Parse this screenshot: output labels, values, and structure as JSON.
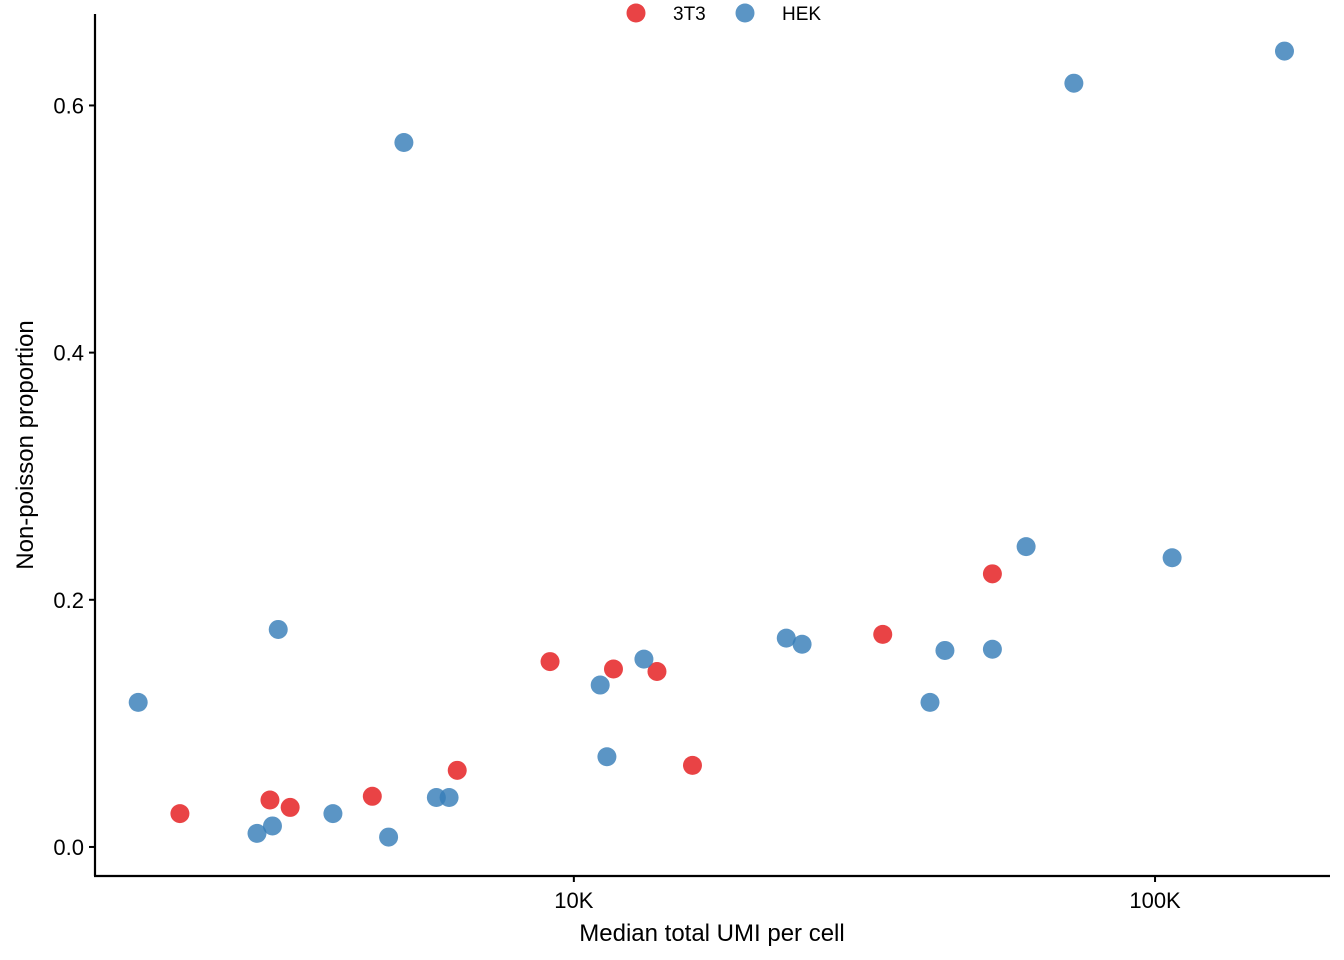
{
  "chart_data": {
    "type": "scatter",
    "title": "",
    "xlabel": "Median total UMI per cell",
    "ylabel": "Non-poisson proportion",
    "x_scale": "log10",
    "xlim": [
      1500,
      200000
    ],
    "ylim": [
      -0.0235,
      0.674
    ],
    "x_ticks": [
      {
        "value": 10000,
        "label": "10K"
      },
      {
        "value": 100000,
        "label": "100K"
      }
    ],
    "y_ticks": [
      {
        "value": 0.0,
        "label": "0.0"
      },
      {
        "value": 0.2,
        "label": "0.2"
      },
      {
        "value": 0.4,
        "label": "0.4"
      },
      {
        "value": 0.6,
        "label": "0.6"
      }
    ],
    "grid": false,
    "legend_position": "top",
    "series": [
      {
        "name": "3T3",
        "color": "#E41A1C",
        "points": [
          {
            "x": 2100,
            "y": 0.027
          },
          {
            "x": 3000,
            "y": 0.038
          },
          {
            "x": 3250,
            "y": 0.032
          },
          {
            "x": 4500,
            "y": 0.041
          },
          {
            "x": 6300,
            "y": 0.062
          },
          {
            "x": 9100,
            "y": 0.15
          },
          {
            "x": 11700,
            "y": 0.144
          },
          {
            "x": 13900,
            "y": 0.142
          },
          {
            "x": 16000,
            "y": 0.066
          },
          {
            "x": 34000,
            "y": 0.172
          },
          {
            "x": 52500,
            "y": 0.221
          }
        ]
      },
      {
        "name": "HEK",
        "color": "#377EB8",
        "points": [
          {
            "x": 1780,
            "y": 0.117
          },
          {
            "x": 2850,
            "y": 0.011
          },
          {
            "x": 3030,
            "y": 0.017
          },
          {
            "x": 3100,
            "y": 0.176
          },
          {
            "x": 3850,
            "y": 0.027
          },
          {
            "x": 4800,
            "y": 0.008
          },
          {
            "x": 5100,
            "y": 0.57
          },
          {
            "x": 5800,
            "y": 0.04
          },
          {
            "x": 6100,
            "y": 0.04
          },
          {
            "x": 11100,
            "y": 0.131
          },
          {
            "x": 11400,
            "y": 0.073
          },
          {
            "x": 13200,
            "y": 0.152
          },
          {
            "x": 23200,
            "y": 0.169
          },
          {
            "x": 24700,
            "y": 0.164
          },
          {
            "x": 41000,
            "y": 0.117
          },
          {
            "x": 43500,
            "y": 0.159
          },
          {
            "x": 52500,
            "y": 0.16
          },
          {
            "x": 60000,
            "y": 0.243
          },
          {
            "x": 72500,
            "y": 0.618
          },
          {
            "x": 107000,
            "y": 0.234
          },
          {
            "x": 167000,
            "y": 0.644
          }
        ]
      }
    ]
  }
}
